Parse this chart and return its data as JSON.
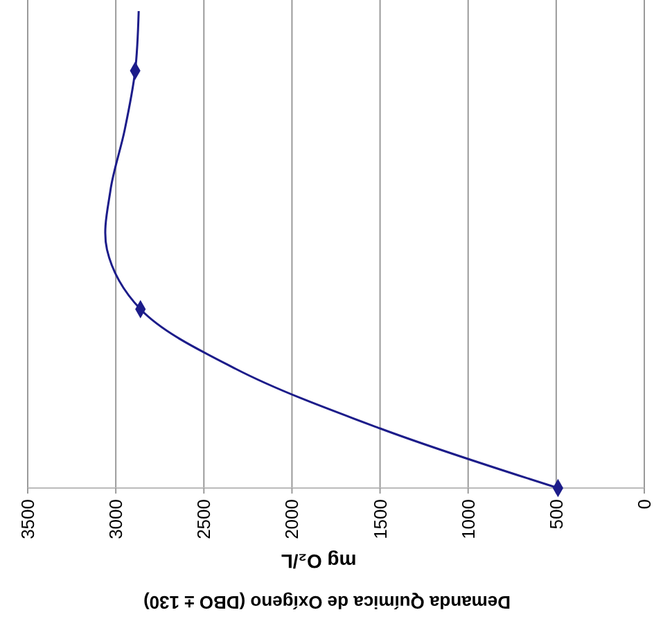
{
  "chart_data": {
    "type": "line",
    "orientation": "horizontal",
    "title": "Demanda Química de Oxígeno (DBO ± 130)",
    "xlabel": "mg O₂/L",
    "categories": [
      null,
      null,
      null,
      null,
      null,
      null,
      null,
      null,
      null
    ],
    "xlim": [
      3500,
      0
    ],
    "xticks": [
      0,
      500,
      1000,
      1500,
      2000,
      2500,
      3000,
      3500
    ],
    "grid": "x",
    "series": [
      {
        "color": "#1c1c8a",
        "marker": "none",
        "values": [
          2870,
          2890,
          2950,
          3030,
          3050,
          2860,
          2320,
          1500,
          490
        ]
      },
      {
        "type": "scatter",
        "color": "#1c1c8a",
        "marker": "diamond",
        "values": [
          null,
          2890,
          null,
          null,
          null,
          2860,
          null,
          null,
          490
        ]
      }
    ]
  }
}
